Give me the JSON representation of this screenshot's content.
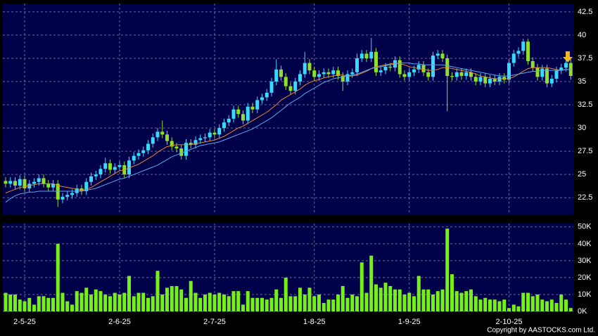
{
  "copyright": "Copyright by AASTOCKS.com Ltd.",
  "chart_data": [
    {
      "type": "candlestick",
      "categories": [
        null,
        null,
        null,
        null,
        "2-5-25",
        null,
        null,
        null,
        null,
        null,
        null,
        null,
        null,
        null,
        null,
        null,
        null,
        null,
        null,
        null,
        null,
        null,
        null,
        null,
        "2-6-25",
        null,
        null,
        null,
        null,
        null,
        null,
        null,
        null,
        null,
        null,
        null,
        null,
        null,
        null,
        null,
        null,
        null,
        null,
        null,
        "2-7-25",
        null,
        null,
        null,
        null,
        null,
        null,
        null,
        null,
        null,
        null,
        null,
        null,
        null,
        null,
        null,
        null,
        null,
        null,
        null,
        null,
        "1-8-25",
        null,
        null,
        null,
        null,
        null,
        null,
        null,
        null,
        null,
        null,
        null,
        null,
        null,
        null,
        null,
        null,
        null,
        null,
        null,
        "1-9-25",
        null,
        null,
        null,
        null,
        null,
        null,
        null,
        null,
        null,
        null,
        null,
        null,
        null,
        null,
        null,
        null,
        null,
        null,
        null,
        null,
        "2-10-25",
        null,
        null,
        null,
        null,
        null,
        null,
        null,
        null,
        null,
        null,
        null,
        null,
        null
      ],
      "open": [
        24.3,
        24.0,
        24.3,
        23.8,
        24.5,
        23.5,
        24.0,
        24.2,
        24.6,
        24.0,
        23.6,
        24.0,
        22.3,
        22.6,
        22.8,
        23.0,
        23.5,
        23.2,
        24.2,
        24.8,
        25.0,
        25.6,
        26.2,
        25.5,
        25.8,
        26.0,
        25.0,
        26.5,
        27.0,
        27.3,
        27.6,
        28.3,
        29.0,
        29.6,
        29.3,
        28.6,
        28.0,
        27.8,
        27.0,
        28.4,
        28.2,
        28.7,
        28.9,
        29.0,
        29.5,
        29.3,
        30.0,
        30.6,
        31.0,
        32.0,
        31.5,
        30.8,
        32.3,
        32.0,
        33.0,
        33.3,
        33.8,
        35.0,
        36.3,
        35.5,
        34.5,
        34.0,
        35.0,
        35.8,
        37.0,
        36.2,
        35.5,
        35.8,
        36.0,
        35.8,
        36.2,
        35.6,
        35.0,
        35.8,
        36.0,
        37.5,
        38.0,
        37.5,
        38.2,
        36.0,
        36.2,
        36.6,
        36.5,
        37.3,
        35.8,
        35.5,
        36.0,
        36.3,
        36.8,
        36.0,
        35.5,
        37.8,
        38.0,
        37.5,
        35.6,
        35.5,
        36.0,
        35.6,
        36.0,
        35.5,
        35.0,
        35.5,
        34.8,
        35.3,
        35.0,
        35.5,
        35.2,
        37.0,
        38.0,
        38.3,
        39.3,
        37.2,
        36.5,
        35.5,
        36.4,
        34.8,
        35.3,
        36.2,
        36.5,
        37.0
      ],
      "high": [
        24.7,
        24.7,
        24.7,
        24.9,
        24.9,
        24.4,
        24.6,
        25.0,
        25.0,
        24.4,
        24.4,
        24.4,
        23.0,
        23.2,
        23.4,
        23.9,
        23.9,
        24.6,
        25.2,
        25.4,
        26.0,
        26.8,
        26.6,
        26.2,
        26.4,
        26.4,
        26.9,
        27.4,
        27.7,
        28.0,
        28.7,
        29.4,
        30.0,
        30.8,
        29.7,
        29.0,
        28.4,
        28.2,
        28.8,
        28.8,
        29.1,
        29.3,
        29.4,
        29.9,
        29.9,
        30.4,
        31.0,
        31.4,
        32.4,
        32.4,
        31.9,
        32.7,
        32.7,
        33.4,
        33.7,
        34.2,
        35.4,
        37.4,
        36.7,
        35.9,
        34.9,
        35.4,
        36.2,
        38.2,
        37.4,
        36.6,
        36.2,
        36.4,
        36.4,
        36.6,
        36.6,
        36.0,
        36.2,
        36.4,
        38.0,
        38.4,
        38.4,
        39.7,
        38.6,
        36.6,
        37.0,
        37.0,
        37.7,
        37.7,
        36.2,
        36.4,
        36.7,
        37.2,
        37.2,
        36.4,
        38.2,
        38.4,
        38.4,
        37.9,
        36.0,
        36.4,
        36.4,
        36.4,
        36.4,
        35.9,
        35.9,
        35.9,
        35.7,
        35.7,
        35.9,
        35.9,
        37.4,
        38.4,
        38.7,
        39.6,
        39.6,
        37.6,
        36.9,
        36.8,
        36.8,
        35.7,
        36.6,
        36.9,
        37.4,
        37.4
      ],
      "low": [
        23.6,
        23.6,
        23.4,
        23.4,
        23.1,
        23.1,
        23.6,
        23.8,
        23.6,
        23.2,
        23.2,
        21.5,
        21.9,
        22.2,
        22.4,
        22.6,
        22.8,
        22.8,
        23.8,
        24.4,
        24.6,
        25.2,
        25.1,
        25.1,
        25.4,
        24.6,
        24.6,
        26.1,
        26.6,
        26.9,
        27.2,
        27.9,
        28.6,
        28.9,
        28.2,
        27.6,
        27.4,
        26.6,
        26.6,
        27.8,
        27.8,
        28.3,
        28.5,
        28.6,
        28.9,
        28.9,
        29.6,
        30.2,
        30.6,
        31.1,
        30.4,
        30.4,
        31.6,
        31.6,
        32.6,
        32.9,
        33.4,
        34.6,
        35.1,
        34.1,
        33.6,
        33.6,
        34.6,
        35.4,
        35.8,
        35.1,
        35.1,
        35.4,
        35.4,
        35.4,
        35.2,
        34.0,
        34.6,
        35.4,
        35.6,
        37.1,
        37.1,
        37.1,
        35.6,
        35.6,
        35.8,
        36.1,
        36.1,
        35.4,
        35.1,
        35.1,
        35.6,
        35.9,
        35.6,
        35.1,
        35.1,
        37.4,
        37.1,
        31.8,
        35.1,
        35.1,
        35.2,
        35.2,
        35.1,
        34.6,
        34.6,
        34.4,
        34.4,
        34.6,
        34.6,
        34.8,
        34.8,
        36.6,
        37.6,
        37.9,
        36.8,
        36.1,
        35.1,
        35.1,
        34.4,
        34.4,
        34.9,
        35.8,
        36.1,
        35.2
      ],
      "close": [
        24.0,
        24.3,
        23.8,
        24.5,
        23.5,
        24.0,
        24.2,
        24.6,
        24.0,
        23.6,
        24.0,
        22.3,
        22.6,
        22.8,
        23.0,
        23.5,
        23.2,
        24.2,
        24.8,
        25.0,
        25.6,
        26.2,
        25.5,
        25.8,
        26.0,
        25.0,
        26.5,
        27.0,
        27.3,
        27.6,
        28.3,
        29.0,
        29.6,
        29.3,
        28.6,
        28.0,
        27.8,
        27.0,
        28.4,
        28.2,
        28.7,
        28.9,
        29.0,
        29.5,
        29.3,
        30.0,
        30.6,
        31.0,
        32.0,
        31.5,
        30.8,
        32.3,
        32.0,
        33.0,
        33.3,
        33.8,
        35.0,
        36.3,
        35.5,
        34.5,
        34.0,
        35.0,
        35.8,
        37.0,
        36.2,
        35.5,
        35.8,
        36.0,
        35.8,
        36.2,
        35.6,
        35.0,
        35.8,
        36.0,
        37.5,
        38.0,
        37.5,
        38.2,
        36.0,
        36.2,
        36.6,
        36.5,
        37.3,
        35.8,
        35.5,
        36.0,
        36.3,
        36.8,
        36.0,
        35.5,
        37.8,
        38.0,
        37.5,
        35.6,
        35.5,
        36.0,
        35.6,
        36.0,
        35.5,
        35.0,
        35.5,
        34.8,
        35.3,
        35.0,
        35.5,
        35.2,
        37.0,
        38.0,
        38.3,
        39.3,
        37.2,
        36.5,
        35.5,
        36.4,
        34.8,
        35.3,
        36.2,
        36.5,
        37.0,
        35.6
      ],
      "up_color": "#36dcff",
      "down_color": "#8ee02a",
      "lines": [
        {
          "color": "#e8882a",
          "values": [
            23.0,
            23.2,
            23.4,
            23.6,
            23.7,
            23.8,
            23.9,
            24.0,
            24.0,
            24.0,
            24.0,
            23.8,
            23.7,
            23.6,
            23.5,
            23.4,
            23.3,
            23.4,
            23.6,
            23.9,
            24.2,
            24.5,
            24.8,
            25.1,
            25.4,
            25.5,
            25.7,
            25.9,
            26.1,
            26.4,
            26.7,
            27.0,
            27.4,
            27.7,
            28.0,
            28.1,
            28.2,
            28.2,
            28.2,
            28.2,
            28.3,
            28.4,
            28.5,
            28.6,
            28.7,
            28.9,
            29.1,
            29.4,
            29.7,
            30.0,
            30.2,
            30.5,
            30.8,
            31.1,
            31.4,
            31.7,
            32.1,
            32.5,
            33.0,
            33.3,
            33.6,
            33.9,
            34.2,
            34.6,
            34.9,
            35.1,
            35.2,
            35.4,
            35.5,
            35.6,
            35.7,
            35.7,
            35.6,
            35.6,
            35.7,
            35.9,
            36.1,
            36.4,
            36.6,
            36.7,
            36.8,
            36.9,
            37.0,
            36.9,
            36.8,
            36.6,
            36.5,
            36.4,
            36.3,
            36.2,
            36.2,
            36.3,
            36.5,
            36.5,
            36.4,
            36.3,
            36.2,
            36.1,
            36.0,
            35.8,
            35.6,
            35.5,
            35.4,
            35.3,
            35.3,
            35.3,
            35.3,
            35.5,
            35.8,
            36.1,
            36.4,
            36.5,
            36.5,
            36.5,
            36.5,
            36.4,
            36.3,
            36.2,
            36.3,
            36.3
          ]
        },
        {
          "color": "#5aaaf0",
          "values": [
            22.0,
            22.4,
            22.7,
            22.9,
            23.0,
            23.1,
            23.1,
            23.2,
            23.2,
            23.2,
            23.2,
            23.2,
            23.2,
            23.2,
            23.2,
            23.2,
            23.2,
            23.3,
            23.4,
            23.5,
            23.7,
            23.9,
            24.1,
            24.3,
            24.5,
            24.6,
            24.8,
            25.0,
            25.2,
            25.4,
            25.6,
            25.8,
            26.0,
            26.3,
            26.6,
            26.9,
            27.1,
            27.3,
            27.5,
            27.7,
            27.9,
            28.1,
            28.2,
            28.3,
            28.4,
            28.5,
            28.7,
            28.9,
            29.1,
            29.3,
            29.5,
            29.7,
            29.9,
            30.2,
            30.5,
            30.8,
            31.1,
            31.5,
            31.9,
            32.3,
            32.7,
            33.0,
            33.3,
            33.7,
            34.0,
            34.3,
            34.6,
            34.9,
            35.1,
            35.3,
            35.4,
            35.5,
            35.6,
            35.7,
            35.8,
            36.0,
            36.2,
            36.4,
            36.5,
            36.6,
            36.7,
            36.8,
            36.9,
            37.0,
            37.0,
            37.0,
            36.9,
            36.9,
            36.8,
            36.8,
            36.8,
            36.8,
            36.8,
            36.7,
            36.6,
            36.5,
            36.4,
            36.3,
            36.2,
            36.1,
            36.0,
            35.9,
            35.8,
            35.7,
            35.6,
            35.6,
            35.6,
            35.7,
            35.8,
            35.9,
            36.0,
            36.1,
            36.1,
            36.2,
            36.2,
            36.2,
            36.2,
            36.2,
            36.3,
            36.3
          ]
        }
      ],
      "ylim": [
        20.7,
        43.4
      ],
      "yticks": [
        22.5,
        25,
        27.5,
        30,
        32.5,
        35,
        37.5,
        40,
        42.5
      ],
      "grid": true
    },
    {
      "type": "bar",
      "color": "#77f01a",
      "values": [
        11000,
        10000,
        10000,
        7000,
        6000,
        8000,
        4000,
        9000,
        9000,
        8000,
        8000,
        40000,
        11000,
        6000,
        4000,
        12000,
        11000,
        14000,
        10000,
        13000,
        12000,
        10000,
        9000,
        11000,
        10000,
        11000,
        21000,
        9000,
        11000,
        11000,
        8000,
        9000,
        24000,
        10000,
        14000,
        15000,
        15000,
        13000,
        8000,
        18000,
        11000,
        8000,
        10000,
        11000,
        10000,
        11000,
        10000,
        9000,
        12000,
        12000,
        4000,
        12000,
        8000,
        8000,
        8000,
        7000,
        8000,
        13000,
        8000,
        20000,
        9000,
        9000,
        14000,
        10000,
        14000,
        9000,
        10000,
        5000,
        7000,
        7000,
        10000,
        15000,
        8000,
        10000,
        9000,
        29000,
        11000,
        33000,
        16000,
        14000,
        17000,
        15000,
        13000,
        13000,
        10000,
        11000,
        9000,
        21000,
        13000,
        13000,
        10000,
        12000,
        13000,
        49000,
        22000,
        12000,
        11000,
        12000,
        13000,
        9000,
        7000,
        8000,
        7000,
        7000,
        6000,
        7000,
        2000,
        4000,
        3000,
        11000,
        11000,
        9000,
        10000,
        7000,
        6000,
        7000,
        5000,
        10000,
        7000,
        2000
      ],
      "ylim": [
        0,
        52000
      ],
      "yticks": [
        {
          "value": 0,
          "label": "0K"
        },
        {
          "value": 10000,
          "label": "10K"
        },
        {
          "value": 20000,
          "label": "20K"
        },
        {
          "value": 30000,
          "label": "30K"
        },
        {
          "value": 40000,
          "label": "40K"
        },
        {
          "value": 50000,
          "label": "50K"
        }
      ],
      "grid": true
    }
  ]
}
